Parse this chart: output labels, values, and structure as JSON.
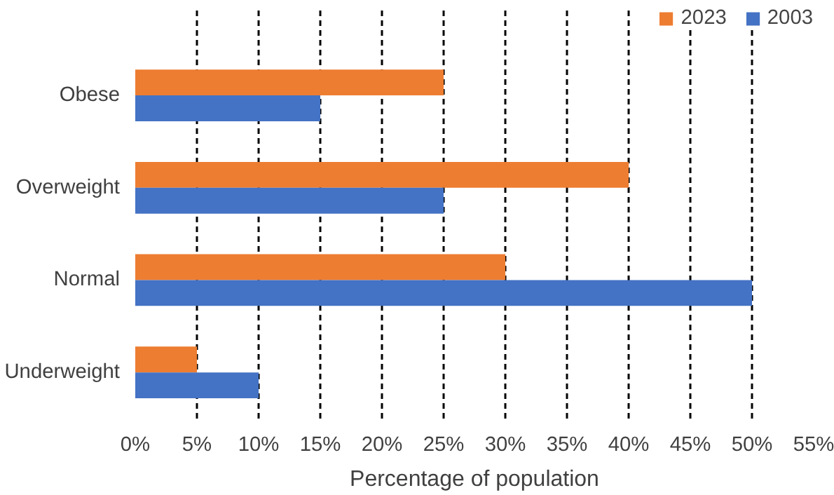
{
  "chart_data": {
    "type": "bar",
    "orientation": "horizontal",
    "xlabel": "Percentage of population",
    "categories": [
      "Obese",
      "Overweight",
      "Normal",
      "Underweight"
    ],
    "series": [
      {
        "name": "2023",
        "color": "#ed7d31",
        "values": [
          25,
          40,
          30,
          5
        ]
      },
      {
        "name": "2003",
        "color": "#4472c4",
        "values": [
          15,
          25,
          50,
          10
        ]
      }
    ],
    "xlim": [
      0,
      55
    ],
    "xticks": [
      {
        "value": 0,
        "label": "0%"
      },
      {
        "value": 5,
        "label": "5%"
      },
      {
        "value": 10,
        "label": "10%"
      },
      {
        "value": 15,
        "label": "15%"
      },
      {
        "value": 20,
        "label": "20%"
      },
      {
        "value": 25,
        "label": "25%"
      },
      {
        "value": 30,
        "label": "30%"
      },
      {
        "value": 35,
        "label": "35%"
      },
      {
        "value": 40,
        "label": "40%"
      },
      {
        "value": 45,
        "label": "45%"
      },
      {
        "value": 50,
        "label": "50%"
      },
      {
        "value": 55,
        "label": "55%"
      }
    ],
    "grid": "x",
    "legend": "top right"
  }
}
